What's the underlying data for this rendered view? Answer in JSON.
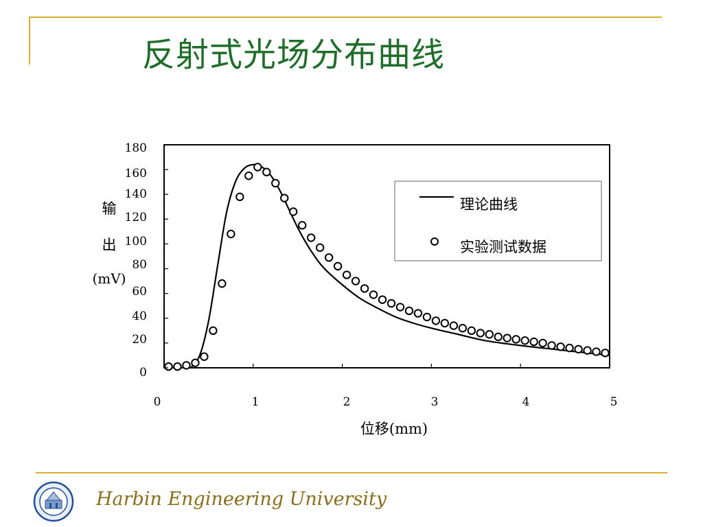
{
  "slide": {
    "title": "反射式光场分布曲线",
    "footer": "Harbin Engineering University"
  },
  "colors": {
    "title": "#1e6e2a",
    "rule": "#d8b030",
    "footer": "#8a6d1a"
  },
  "chart_data": {
    "type": "line",
    "xlabel": "位移(mm)",
    "ylabel": [
      "输",
      "出",
      "(mV)"
    ],
    "xlim": [
      0,
      5
    ],
    "ylim": [
      0,
      180
    ],
    "xticks": [
      "0",
      "1",
      "2",
      "3",
      "4",
      "5"
    ],
    "yticks": [
      "0",
      "20",
      "40",
      "60",
      "80",
      "100",
      "120",
      "140",
      "160",
      "180"
    ],
    "grid": false,
    "legend_position": "top-right",
    "series": [
      {
        "name": "理论曲线",
        "style": "line",
        "x": [
          0.3,
          0.4,
          0.5,
          0.6,
          0.7,
          0.8,
          0.9,
          1.0,
          1.1,
          1.2,
          1.3,
          1.4,
          1.5,
          1.6,
          1.7,
          1.8,
          2.0,
          2.2,
          2.4,
          2.6,
          2.8,
          3.0,
          3.3,
          3.6,
          4.0,
          4.5,
          5.0
        ],
        "y": [
          0,
          10,
          38,
          82,
          125,
          150,
          161,
          164,
          162,
          155,
          143,
          128,
          113,
          100,
          89,
          80,
          67,
          56,
          48,
          41,
          36,
          32,
          27,
          22,
          18,
          14,
          10
        ]
      },
      {
        "name": "实验测试数据",
        "style": "marker",
        "x": [
          0.05,
          0.15,
          0.25,
          0.35,
          0.45,
          0.55,
          0.65,
          0.75,
          0.85,
          0.95,
          1.05,
          1.15,
          1.25,
          1.35,
          1.45,
          1.55,
          1.65,
          1.75,
          1.85,
          1.95,
          2.05,
          2.15,
          2.25,
          2.35,
          2.45,
          2.55,
          2.65,
          2.75,
          2.85,
          2.95,
          3.05,
          3.15,
          3.25,
          3.35,
          3.45,
          3.55,
          3.65,
          3.75,
          3.85,
          3.95,
          4.05,
          4.15,
          4.25,
          4.35,
          4.45,
          4.55,
          4.65,
          4.75,
          4.85,
          4.95
        ],
        "y": [
          1,
          1,
          2,
          4,
          9,
          30,
          68,
          108,
          138,
          155,
          162,
          158,
          149,
          137,
          126,
          115,
          105,
          97,
          89,
          82,
          75,
          70,
          64,
          59,
          55,
          52,
          49,
          46,
          44,
          41,
          38,
          36,
          34,
          32,
          30,
          28,
          27,
          25,
          24,
          23,
          22,
          21,
          20,
          18,
          17,
          16,
          15,
          14,
          13,
          12
        ]
      }
    ]
  }
}
